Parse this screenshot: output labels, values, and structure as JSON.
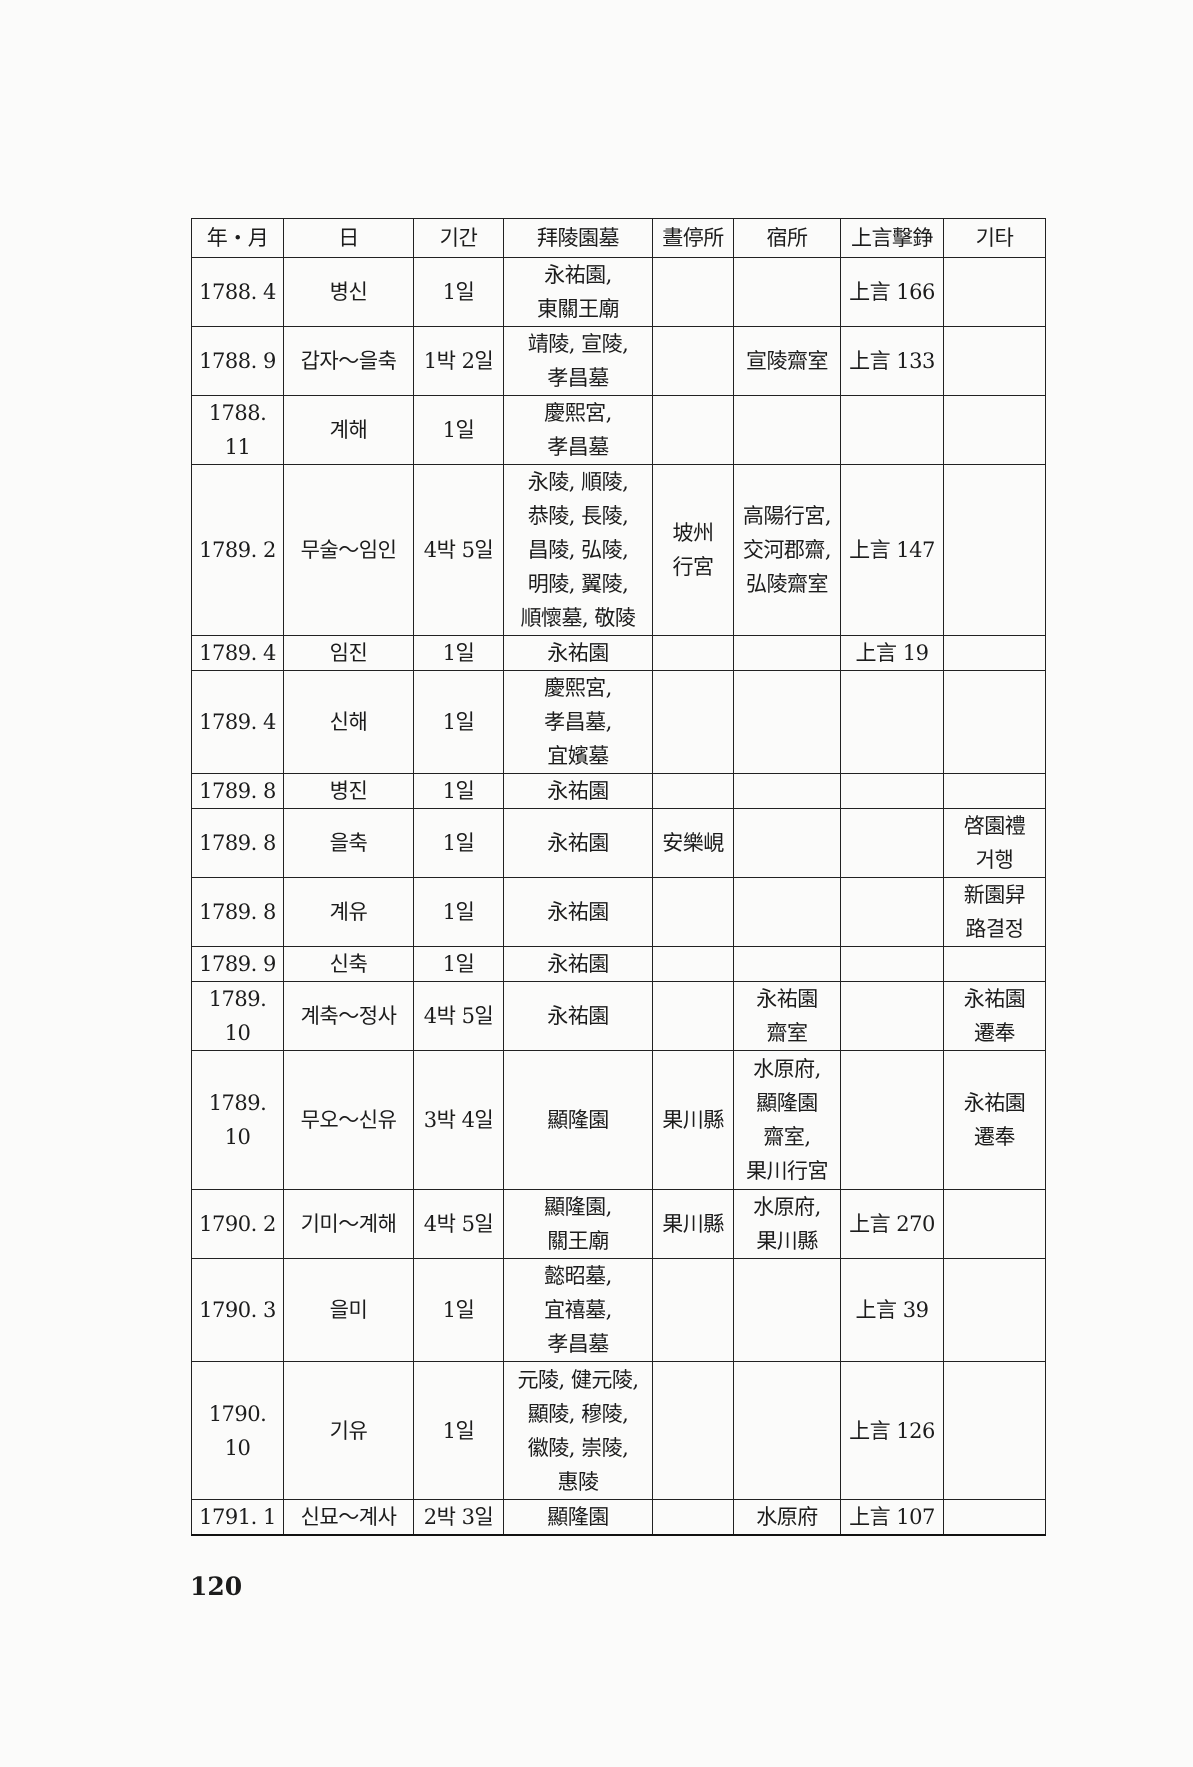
{
  "table": {
    "headers": [
      "年・月",
      "日",
      "기간",
      "拜陵園墓",
      "晝停所",
      "宿所",
      "上言擊錚",
      "기타"
    ],
    "rows": [
      [
        "1788. 4",
        "병신",
        "1일",
        "永祐園,\n東關王廟",
        "",
        "",
        "上言 166",
        ""
      ],
      [
        "1788. 9",
        "갑자～을축",
        "1박 2일",
        "靖陵, 宣陵,\n孝昌墓",
        "",
        "宣陵齋室",
        "上言 133",
        ""
      ],
      [
        "1788.\n11",
        "계해",
        "1일",
        "慶熙宮,\n孝昌墓",
        "",
        "",
        "",
        ""
      ],
      [
        "1789. 2",
        "무술～임인",
        "4박 5일",
        "永陵, 順陵,\n恭陵, 長陵,\n昌陵, 弘陵,\n明陵, 翼陵,\n順懷墓, 敬陵",
        "坡州\n行宮",
        "高陽行宮,\n交河郡齋,\n弘陵齋室",
        "上言 147",
        ""
      ],
      [
        "1789. 4",
        "임진",
        "1일",
        "永祐園",
        "",
        "",
        "上言 19",
        ""
      ],
      [
        "1789. 4",
        "신해",
        "1일",
        "慶熙宮,\n孝昌墓,\n宜嬪墓",
        "",
        "",
        "",
        ""
      ],
      [
        "1789. 8",
        "병진",
        "1일",
        "永祐園",
        "",
        "",
        "",
        ""
      ],
      [
        "1789. 8",
        "을축",
        "1일",
        "永祐園",
        "安樂峴",
        "",
        "",
        "啓園禮\n거행"
      ],
      [
        "1789. 8",
        "계유",
        "1일",
        "永祐園",
        "",
        "",
        "",
        "新園舁\n路결정"
      ],
      [
        "1789. 9",
        "신축",
        "1일",
        "永祐園",
        "",
        "",
        "",
        ""
      ],
      [
        "1789.\n10",
        "계축～정사",
        "4박 5일",
        "永祐園",
        "",
        "永祐園\n齋室",
        "",
        "永祐園\n遷奉"
      ],
      [
        "1789.\n10",
        "무오～신유",
        "3박 4일",
        "顯隆園",
        "果川縣",
        "水原府,\n顯隆園\n齋室,\n果川行宮",
        "",
        "永祐園\n遷奉"
      ],
      [
        "1790. 2",
        "기미～계해",
        "4박 5일",
        "顯隆園,\n關王廟",
        "果川縣",
        "水原府,\n果川縣",
        "上言 270",
        ""
      ],
      [
        "1790. 3",
        "을미",
        "1일",
        "懿昭墓,\n宜禧墓,\n孝昌墓",
        "",
        "",
        "上言 39",
        ""
      ],
      [
        "1790.\n10",
        "기유",
        "1일",
        "元陵, 健元陵,\n顯陵, 穆陵,\n徽陵, 崇陵,\n惠陵",
        "",
        "",
        "上言 126",
        ""
      ],
      [
        "1791. 1",
        "신묘～계사",
        "2박 3일",
        "顯隆園",
        "",
        "水原府",
        "上言 107",
        ""
      ]
    ]
  },
  "page_number": "120"
}
